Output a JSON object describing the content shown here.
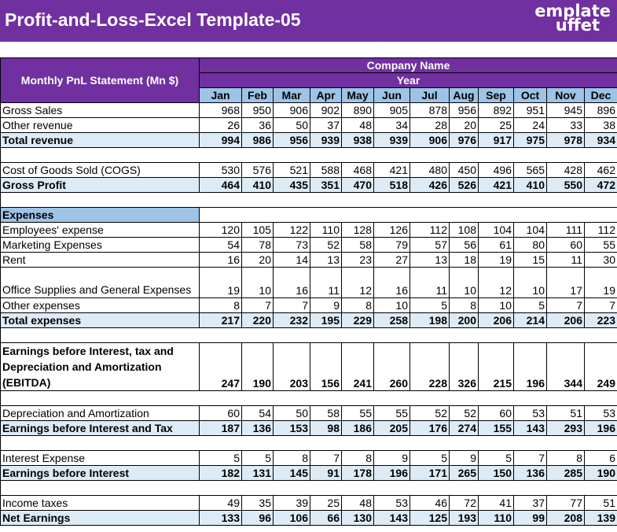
{
  "title": "Profit-and-Loss-Excel Template-05",
  "logo": {
    "line1": "emplate",
    "line2": "uffet",
    "brand": "Template Buffet"
  },
  "colors": {
    "purple": "#7030a0",
    "month_header": "#9dc3e6",
    "total_row": "#ddebf7"
  },
  "header": {
    "statement": "Monthly PnL Statement (Mn $)",
    "company": "Company Name",
    "year": "Year"
  },
  "months": [
    "Jan",
    "Feb",
    "Mar",
    "Apr",
    "May",
    "Jun",
    "Jul",
    "Aug",
    "Sep",
    "Oct",
    "Nov",
    "Dec"
  ],
  "rows": {
    "gross_sales": {
      "label": "Gross Sales",
      "values": [
        968,
        950,
        906,
        902,
        890,
        905,
        878,
        956,
        892,
        951,
        945,
        896
      ]
    },
    "other_revenue": {
      "label": "Other revenue",
      "values": [
        26,
        36,
        50,
        37,
        48,
        34,
        28,
        20,
        25,
        24,
        33,
        38
      ]
    },
    "total_revenue": {
      "label": "Total revenue",
      "values": [
        994,
        986,
        956,
        939,
        938,
        939,
        906,
        976,
        917,
        975,
        978,
        934
      ]
    },
    "cogs": {
      "label": "Cost of Goods Sold (COGS)",
      "values": [
        530,
        576,
        521,
        588,
        468,
        421,
        480,
        450,
        496,
        565,
        428,
        462
      ]
    },
    "gross_profit": {
      "label": "Gross Profit",
      "values": [
        464,
        410,
        435,
        351,
        470,
        518,
        426,
        526,
        421,
        410,
        550,
        472
      ]
    },
    "expenses_header": "Expenses",
    "employees": {
      "label": "Employees' expense",
      "values": [
        120,
        105,
        122,
        110,
        128,
        126,
        112,
        108,
        104,
        104,
        111,
        112
      ]
    },
    "marketing": {
      "label": "Marketing Expenses",
      "values": [
        54,
        78,
        73,
        52,
        58,
        79,
        57,
        56,
        61,
        80,
        60,
        55
      ]
    },
    "rent": {
      "label": "Rent",
      "values": [
        16,
        20,
        14,
        13,
        23,
        27,
        13,
        18,
        19,
        15,
        11,
        30
      ]
    },
    "office": {
      "label": "Office Supplies and General Expenses",
      "values": [
        19,
        10,
        16,
        11,
        12,
        16,
        11,
        10,
        12,
        10,
        17,
        19
      ]
    },
    "other_expenses": {
      "label": "Other expenses",
      "values": [
        8,
        7,
        7,
        9,
        8,
        10,
        5,
        8,
        10,
        5,
        7,
        7
      ]
    },
    "total_expenses": {
      "label": "Total expenses",
      "values": [
        217,
        220,
        232,
        195,
        229,
        258,
        198,
        200,
        206,
        214,
        206,
        223
      ]
    },
    "ebitda": {
      "label": "Earnings before Interest, tax and Depreciation and Amortization (EBITDA)",
      "values": [
        247,
        190,
        203,
        156,
        241,
        260,
        228,
        326,
        215,
        196,
        344,
        249
      ]
    },
    "da": {
      "label": "Depreciation and Amortization",
      "values": [
        60,
        54,
        50,
        58,
        55,
        55,
        52,
        52,
        60,
        53,
        51,
        53
      ]
    },
    "ebit": {
      "label": "Earnings before Interest and Tax",
      "values": [
        187,
        136,
        153,
        98,
        186,
        205,
        176,
        274,
        155,
        143,
        293,
        196
      ]
    },
    "interest": {
      "label": "Interest Expense",
      "values": [
        5,
        5,
        8,
        7,
        8,
        9,
        5,
        9,
        5,
        7,
        8,
        6
      ]
    },
    "ebi": {
      "label": "Earnings before Interest",
      "values": [
        182,
        131,
        145,
        91,
        178,
        196,
        171,
        265,
        150,
        136,
        285,
        190
      ]
    },
    "taxes": {
      "label": "Income taxes",
      "values": [
        49,
        35,
        39,
        25,
        48,
        53,
        46,
        72,
        41,
        37,
        77,
        51
      ]
    },
    "net": {
      "label": "Net Earnings",
      "values": [
        133,
        96,
        106,
        66,
        130,
        143,
        125,
        193,
        110,
        99,
        208,
        139
      ]
    }
  }
}
